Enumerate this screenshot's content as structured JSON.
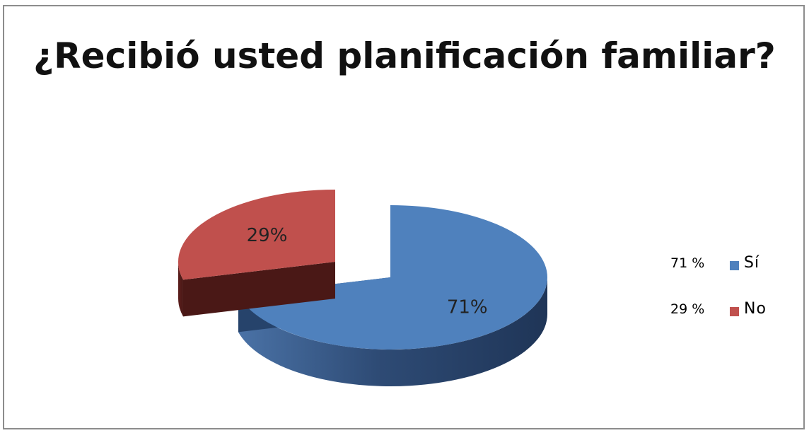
{
  "chart_data": {
    "type": "pie",
    "title": "¿Recibió usted planificación familiar?",
    "slices": [
      {
        "label": "Sí",
        "value": 71,
        "data_label": "71%",
        "legend_value": "71 %",
        "color": "#4f81bd"
      },
      {
        "label": "No",
        "value": 29,
        "data_label": "29%",
        "legend_value": "29 %",
        "color": "#c0504d"
      }
    ],
    "exploded": "No",
    "style": "3d",
    "legend_position": "right"
  }
}
